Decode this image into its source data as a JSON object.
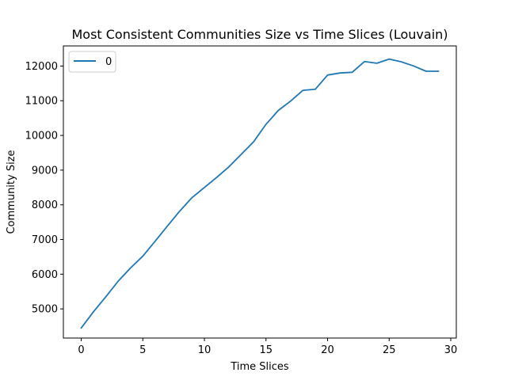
{
  "chart_data": {
    "type": "line",
    "title": "Most Consistent Communities Size vs Time Slices (Louvain)",
    "xlabel": "Time Slices",
    "ylabel": "Community Size",
    "xlim": [
      -1.45,
      30.45
    ],
    "ylim": [
      4160,
      12580
    ],
    "x_ticks": [
      0,
      5,
      10,
      15,
      20,
      25,
      30
    ],
    "y_ticks": [
      5000,
      6000,
      7000,
      8000,
      9000,
      10000,
      11000,
      12000
    ],
    "x_tick_labels": [
      "0",
      "5",
      "10",
      "15",
      "20",
      "25",
      "30"
    ],
    "y_tick_labels": [
      "5000",
      "6000",
      "7000",
      "8000",
      "9000",
      "10000",
      "11000",
      "12000"
    ],
    "grid": false,
    "legend_position": "upper-left",
    "series": [
      {
        "name": "0",
        "color": "#1f77b4",
        "x": [
          0,
          1,
          2,
          3,
          4,
          5,
          6,
          7,
          8,
          9,
          10,
          11,
          12,
          13,
          14,
          15,
          16,
          17,
          18,
          19,
          20,
          21,
          22,
          23,
          24,
          25,
          26,
          27,
          28,
          29
        ],
        "values": [
          4450,
          4920,
          5350,
          5800,
          6180,
          6520,
          6950,
          7390,
          7820,
          8210,
          8500,
          8790,
          9100,
          9460,
          9820,
          10320,
          10720,
          10990,
          11300,
          11330,
          11740,
          11800,
          11820,
          12130,
          12080,
          12200,
          12120,
          12000,
          11850,
          11850
        ]
      }
    ]
  }
}
